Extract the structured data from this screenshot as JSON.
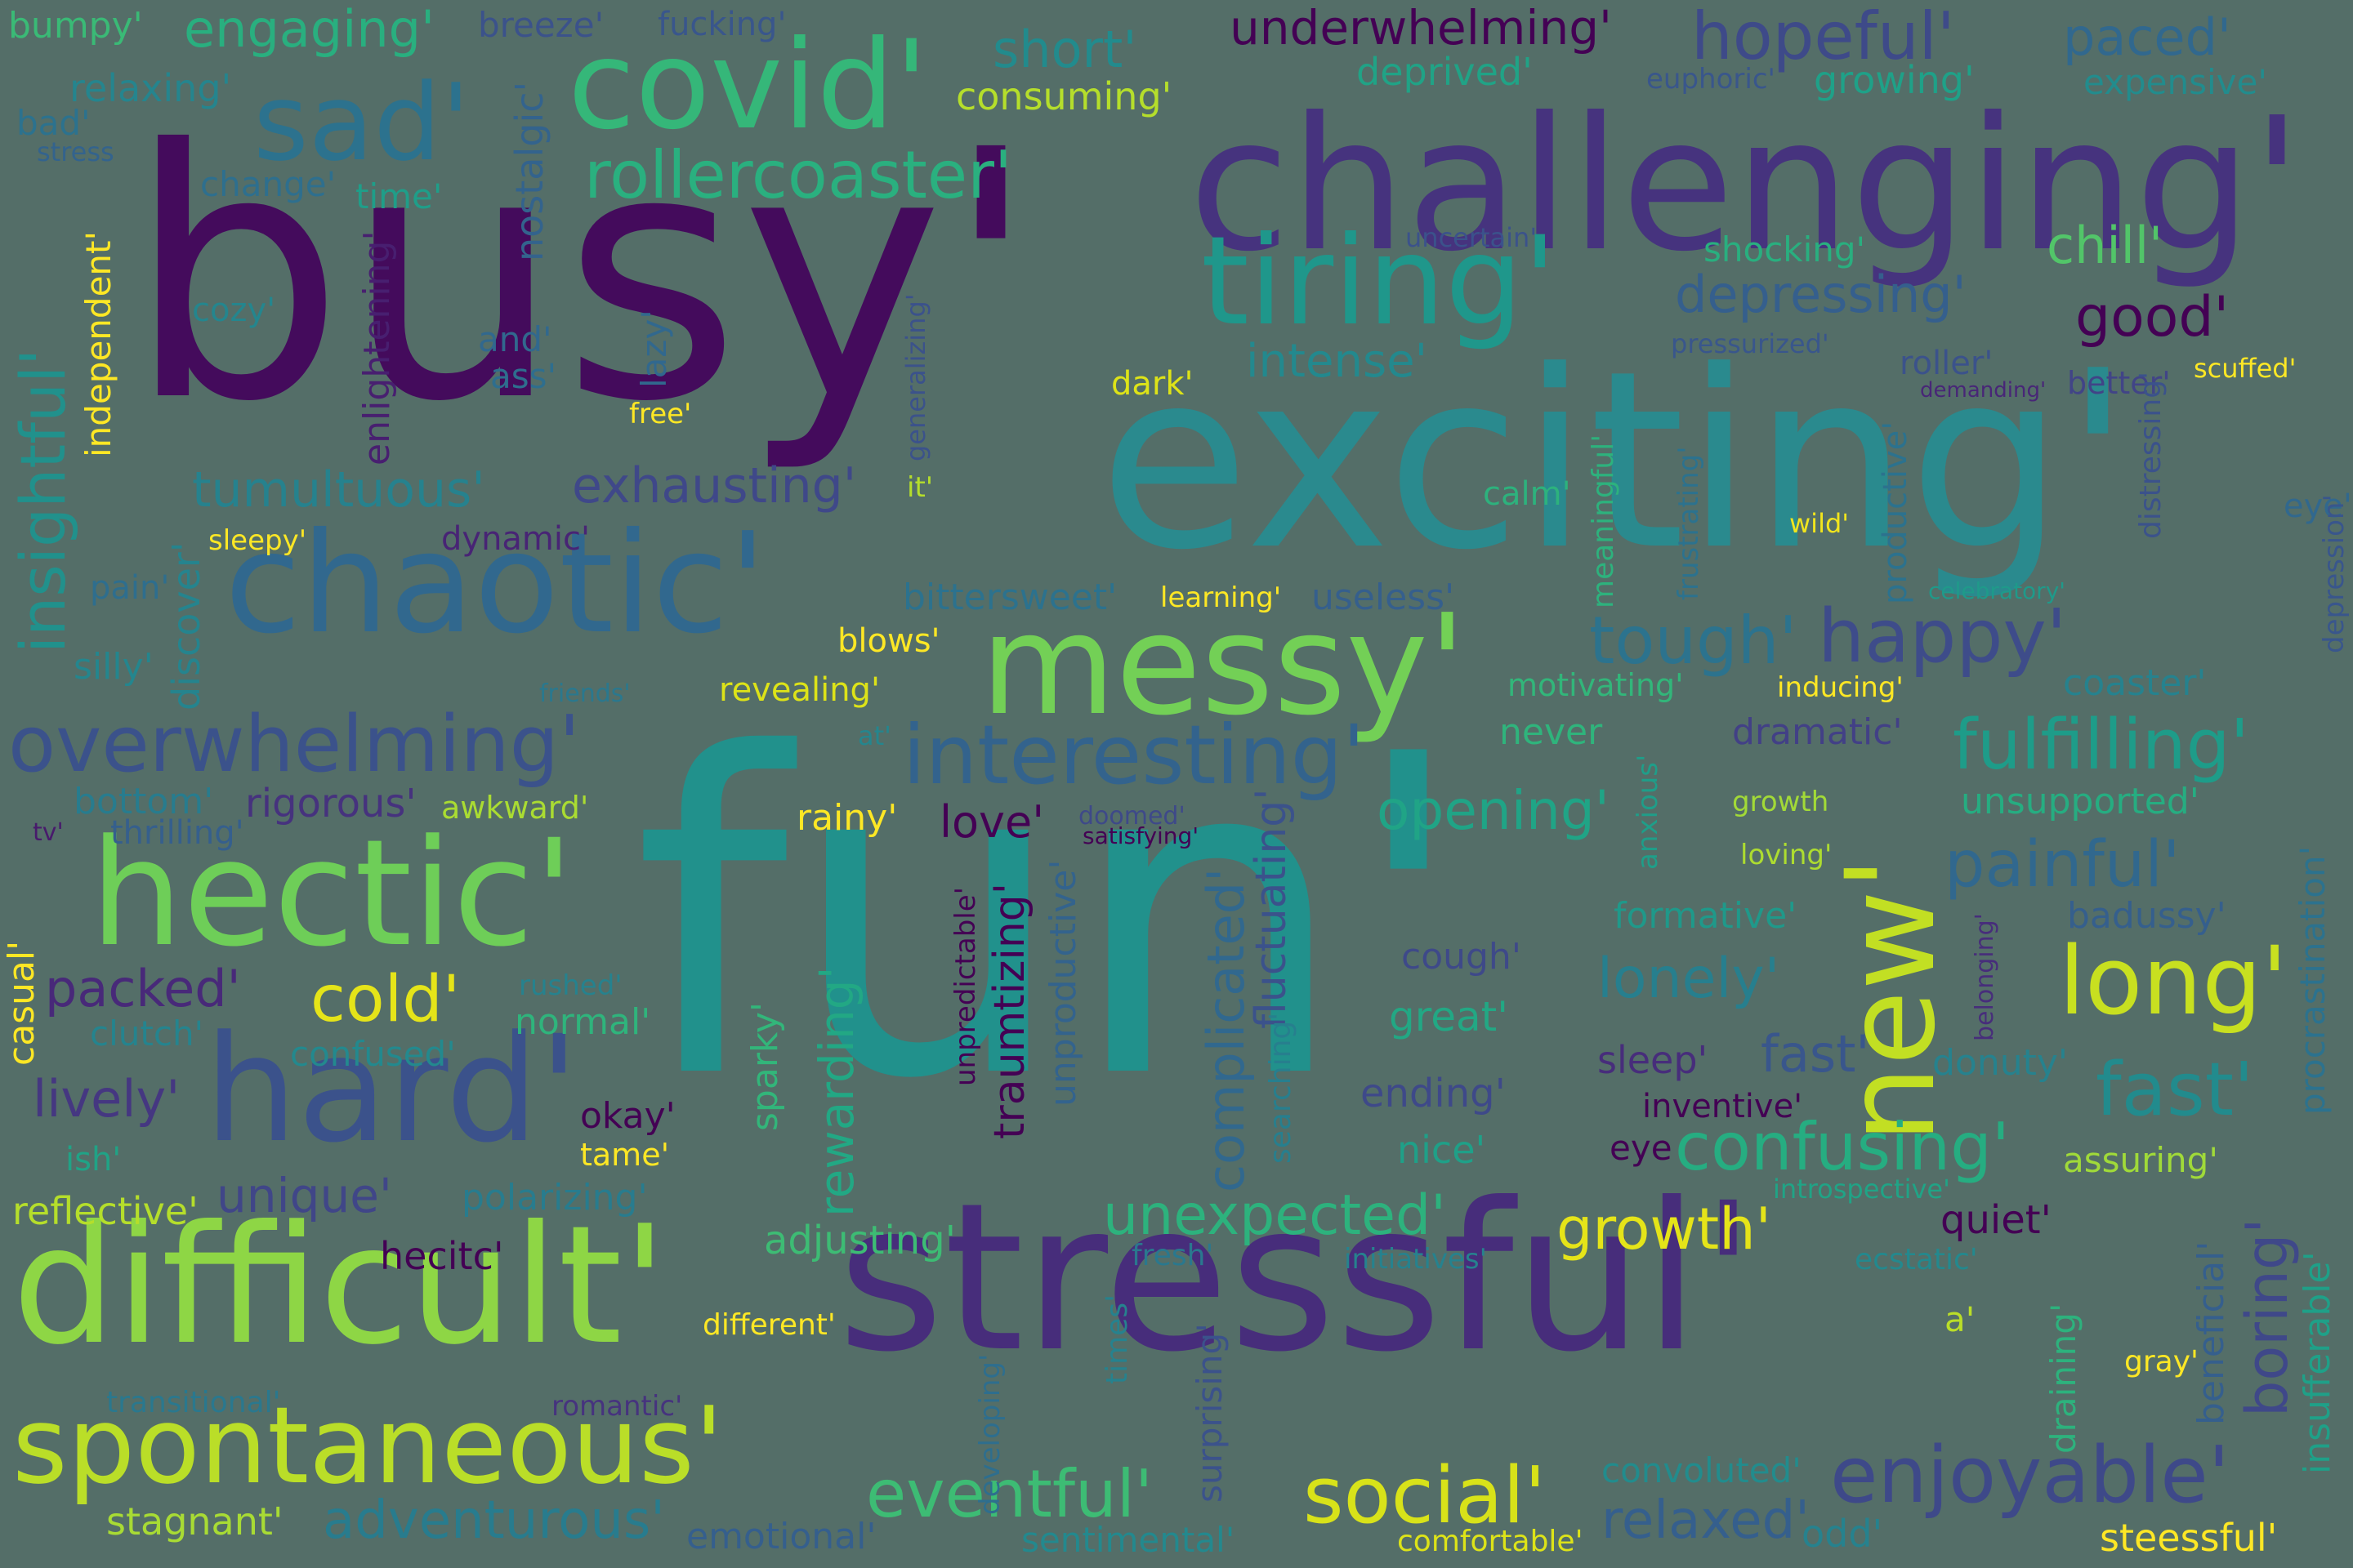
{
  "words": [
    {
      "text": "busy'",
      "color": "#440b5c"
    },
    {
      "text": "fun'",
      "color": "#21918c"
    },
    {
      "text": "exciting'",
      "color": "#2a8a8e"
    },
    {
      "text": "challenging'",
      "color": "#46337e"
    },
    {
      "text": "stressful'",
      "color": "#472d7b"
    },
    {
      "text": "messy'",
      "color": "#73d056"
    },
    {
      "text": "chaotic'",
      "color": "#31688e"
    },
    {
      "text": "difficult'",
      "color": "#8ed645"
    },
    {
      "text": "hectic'",
      "color": "#6ece58"
    },
    {
      "text": "hard'",
      "color": "#3b528b"
    },
    {
      "text": "spontaneous'",
      "color": "#bade28"
    },
    {
      "text": "covid'",
      "color": "#35b779"
    },
    {
      "text": "sad'",
      "color": "#2c728e"
    },
    {
      "text": "tiring'",
      "color": "#1f978b"
    },
    {
      "text": "new'",
      "color": "#c2df23"
    },
    {
      "text": "overwhelming'",
      "color": "#3b528b"
    },
    {
      "text": "interesting'",
      "color": "#33638d"
    },
    {
      "text": "fulfilling'",
      "color": "#1e9c89"
    },
    {
      "text": "long'",
      "color": "#c8e020"
    },
    {
      "text": "rollercoaster'",
      "color": "#2ab07f"
    },
    {
      "text": "hopeful'",
      "color": "#3e4a89"
    },
    {
      "text": "happy'",
      "color": "#3e4c8a"
    },
    {
      "text": "tough'",
      "color": "#2c738e"
    },
    {
      "text": "social'",
      "color": "#d8e219"
    },
    {
      "text": "enjoyable'",
      "color": "#3e4989"
    },
    {
      "text": "eventful'",
      "color": "#3dbc74"
    },
    {
      "text": "confusing'",
      "color": "#26ad81"
    },
    {
      "text": "unexpected'",
      "color": "#2db27d"
    },
    {
      "text": "fast'",
      "color": "#228b8d"
    },
    {
      "text": "fast'",
      "color": "#39568c"
    },
    {
      "text": "painful'",
      "color": "#31688e"
    },
    {
      "text": "lonely'",
      "color": "#277f8e"
    },
    {
      "text": "cold'",
      "color": "#e5e419"
    },
    {
      "text": "packed'",
      "color": "#482979"
    },
    {
      "text": "lively'",
      "color": "#453781"
    },
    {
      "text": "unique'",
      "color": "#404688"
    },
    {
      "text": "tumultuous'",
      "color": "#26828e"
    },
    {
      "text": "exhausting'",
      "color": "#3f4889"
    },
    {
      "text": "depressing'",
      "color": "#355f8d"
    },
    {
      "text": "good'",
      "color": "#440154"
    },
    {
      "text": "chill'",
      "color": "#52c569"
    },
    {
      "text": "intense'",
      "color": "#23898e"
    },
    {
      "text": "engaging'",
      "color": "#29af7f"
    },
    {
      "text": "underwhelming'",
      "color": "#440154"
    },
    {
      "text": "short'",
      "color": "#228b8d"
    },
    {
      "text": "consuming'",
      "color": "#b5de2b"
    },
    {
      "text": "deprived'",
      "color": "#20a386"
    },
    {
      "text": "growing'",
      "color": "#1fa188"
    },
    {
      "text": "paced'",
      "color": "#31688e"
    },
    {
      "text": "expensive'",
      "color": "#228c8d"
    },
    {
      "text": "euphoric'",
      "color": "#39568c"
    },
    {
      "text": "relaxing'",
      "color": "#25858e"
    },
    {
      "text": "bad'",
      "color": "#2c728e"
    },
    {
      "text": "stress",
      "color": "#33638d"
    },
    {
      "text": "bumpy'",
      "color": "#3aba76"
    },
    {
      "text": "breeze'",
      "color": "#3b528b"
    },
    {
      "text": "fucking'",
      "color": "#39568c"
    },
    {
      "text": "change'",
      "color": "#2e6f8e"
    },
    {
      "text": "time'",
      "color": "#1f9e89"
    },
    {
      "text": "uncertain'",
      "color": "#3b528b"
    },
    {
      "text": "shocking'",
      "color": "#29af7f"
    },
    {
      "text": "cozy'",
      "color": "#24868e"
    },
    {
      "text": "and'",
      "color": "#31688e"
    },
    {
      "text": "ass'",
      "color": "#2e6e8e"
    },
    {
      "text": "free'",
      "color": "#fde725"
    },
    {
      "text": "dark'",
      "color": "#dde318"
    },
    {
      "text": "pressurized'",
      "color": "#39568c"
    },
    {
      "text": "roller'",
      "color": "#3b528b"
    },
    {
      "text": "better'",
      "color": "#414487"
    },
    {
      "text": "demanding'",
      "color": "#482677"
    },
    {
      "text": "scuffed'",
      "color": "#fde725"
    },
    {
      "text": "sleepy'",
      "color": "#fde725"
    },
    {
      "text": "dynamic'",
      "color": "#482475"
    },
    {
      "text": "it'",
      "color": "#b5de2b"
    },
    {
      "text": "calm'",
      "color": "#2db27d"
    },
    {
      "text": "wild'",
      "color": "#f1e51d"
    },
    {
      "text": "eye'",
      "color": "#31688e"
    },
    {
      "text": "pain'",
      "color": "#2e6e8e"
    },
    {
      "text": "silly'",
      "color": "#24868e"
    },
    {
      "text": "bittersweet'",
      "color": "#2c728e"
    },
    {
      "text": "learning'",
      "color": "#fde725"
    },
    {
      "text": "useless'",
      "color": "#355f8d"
    },
    {
      "text": "celebratory'",
      "color": "#1f9a8a"
    },
    {
      "text": "blows'",
      "color": "#fde725"
    },
    {
      "text": "revealing'",
      "color": "#dde318"
    },
    {
      "text": "friends'",
      "color": "#2a788e"
    },
    {
      "text": "motivating'",
      "color": "#32b67a"
    },
    {
      "text": "inducing'",
      "color": "#fde725"
    },
    {
      "text": "coaster'",
      "color": "#26828e"
    },
    {
      "text": "at'",
      "color": "#24868e"
    },
    {
      "text": "never",
      "color": "#2fb47c"
    },
    {
      "text": "dramatic'",
      "color": "#424086"
    },
    {
      "text": "bottom'",
      "color": "#287c8e"
    },
    {
      "text": "rigorous'",
      "color": "#46327e"
    },
    {
      "text": "awkward'",
      "color": "#aadc32"
    },
    {
      "text": "thrilling'",
      "color": "#355f8d"
    },
    {
      "text": "tv'",
      "color": "#481a6c"
    },
    {
      "text": "rainy'",
      "color": "#fde725"
    },
    {
      "text": "love'",
      "color": "#440154"
    },
    {
      "text": "doomed'",
      "color": "#3e4989"
    },
    {
      "text": "satisfying'",
      "color": "#440154"
    },
    {
      "text": "opening'",
      "color": "#20a486"
    },
    {
      "text": "growth",
      "color": "#a2da37"
    },
    {
      "text": "unsupported'",
      "color": "#26ad81"
    },
    {
      "text": "loving'",
      "color": "#addc30"
    },
    {
      "text": "formative'",
      "color": "#1f998a"
    },
    {
      "text": "badussy'",
      "color": "#355f8d"
    },
    {
      "text": "cough'",
      "color": "#3e4989"
    },
    {
      "text": "great'",
      "color": "#22a884"
    },
    {
      "text": "rushed'",
      "color": "#26828e"
    },
    {
      "text": "normal'",
      "color": "#2fb47c"
    },
    {
      "text": "clutch'",
      "color": "#25848e"
    },
    {
      "text": "confused'",
      "color": "#23898e"
    },
    {
      "text": "sleep'",
      "color": "#472d7b"
    },
    {
      "text": "donuty'",
      "color": "#26828e"
    },
    {
      "text": "ending'",
      "color": "#3e4989"
    },
    {
      "text": "inventive'",
      "color": "#440154"
    },
    {
      "text": "okay'",
      "color": "#440154"
    },
    {
      "text": "tame'",
      "color": "#fde725"
    },
    {
      "text": "nice'",
      "color": "#1fa088"
    },
    {
      "text": "eye",
      "color": "#440154"
    },
    {
      "text": "ish'",
      "color": "#20a386"
    },
    {
      "text": "assuring'",
      "color": "#a0da39"
    },
    {
      "text": "polarizing'",
      "color": "#287c8e"
    },
    {
      "text": "reflective'",
      "color": "#b5de2b"
    },
    {
      "text": "introspective'",
      "color": "#20a486"
    },
    {
      "text": "adjusting'",
      "color": "#3dbc74"
    },
    {
      "text": "growth'",
      "color": "#e5e419"
    },
    {
      "text": "quiet'",
      "color": "#440154"
    },
    {
      "text": "hecitc'",
      "color": "#440154"
    },
    {
      "text": "fresh'",
      "color": "#2a788e"
    },
    {
      "text": "initiatives'",
      "color": "#26828e"
    },
    {
      "text": "ecstatic'",
      "color": "#23898e"
    },
    {
      "text": "different'",
      "color": "#fde725"
    },
    {
      "text": "a'",
      "color": "#bade28"
    },
    {
      "text": "gray'",
      "color": "#fde725"
    },
    {
      "text": "transitional'",
      "color": "#2a788e"
    },
    {
      "text": "romantic'",
      "color": "#46337e"
    },
    {
      "text": "convoluted'",
      "color": "#228c8d"
    },
    {
      "text": "stagnant'",
      "color": "#a8db34"
    },
    {
      "text": "adventurous'",
      "color": "#287c8e"
    },
    {
      "text": "emotional'",
      "color": "#355f8d"
    },
    {
      "text": "sentimental'",
      "color": "#23898e"
    },
    {
      "text": "comfortable'",
      "color": "#dde318"
    },
    {
      "text": "relaxed'",
      "color": "#355f8d"
    },
    {
      "text": "odd'",
      "color": "#26828e"
    },
    {
      "text": "steessful'",
      "color": "#fde725"
    },
    {
      "text": "nostalgic'",
      "color": "#33638d"
    },
    {
      "text": "enlightening'",
      "color": "#481f70"
    },
    {
      "text": "lazy'",
      "color": "#31688e"
    },
    {
      "text": "independent'",
      "color": "#fde725"
    },
    {
      "text": "insightful'",
      "color": "#21918c"
    },
    {
      "text": "discover'",
      "color": "#25848e"
    },
    {
      "text": "casual'",
      "color": "#fde725"
    },
    {
      "text": "complicated'",
      "color": "#31688e"
    },
    {
      "text": "fluctuating'",
      "color": "#3b528b"
    },
    {
      "text": "rewarding'",
      "color": "#22a884"
    },
    {
      "text": "traumtizing'",
      "color": "#440154"
    },
    {
      "text": "unproductive'",
      "color": "#33638d"
    },
    {
      "text": "unpredictable'",
      "color": "#440154"
    },
    {
      "text": "sparky'",
      "color": "#32b67a"
    },
    {
      "text": "searching'",
      "color": "#277f8e"
    },
    {
      "text": "times'",
      "color": "#26828e"
    },
    {
      "text": "surprising'",
      "color": "#3b528b"
    },
    {
      "text": "developing'",
      "color": "#2e6e8e"
    },
    {
      "text": "meaningful'",
      "color": "#2db27d"
    },
    {
      "text": "frustrating'",
      "color": "#2c728e"
    },
    {
      "text": "productive'",
      "color": "#2c728e"
    },
    {
      "text": "distressing'",
      "color": "#3b528b"
    },
    {
      "text": "depression'",
      "color": "#39568c"
    },
    {
      "text": "anxious'",
      "color": "#1f9e89"
    },
    {
      "text": "belonging'",
      "color": "#472d7b"
    },
    {
      "text": "procrastination'",
      "color": "#2c728e"
    },
    {
      "text": "insufferable'",
      "color": "#1fa088"
    },
    {
      "text": "beneficial'",
      "color": "#355f8d"
    },
    {
      "text": "draining'",
      "color": "#2db27d"
    },
    {
      "text": "boring'",
      "color": "#3f4889"
    },
    {
      "text": "generalizing'",
      "color": "#3b528b"
    }
  ]
}
